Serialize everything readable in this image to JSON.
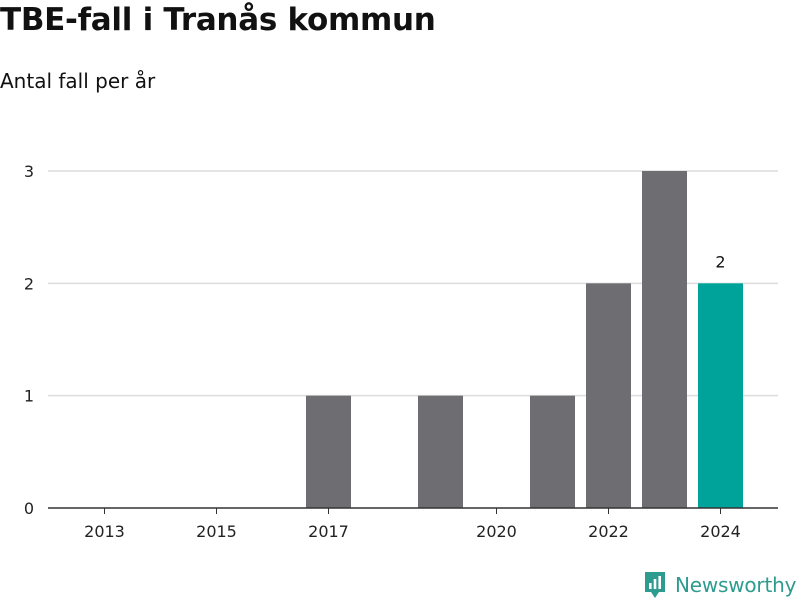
{
  "title": "TBE-fall i Tranås kommun",
  "subtitle": "Antal fall per år",
  "brand": "Newsworthy",
  "colors": {
    "bar": "#6e6e72",
    "highlight": "#00a39a",
    "grid": "#dcdcdc",
    "axis": "#333333"
  },
  "chart_data": {
    "type": "bar",
    "title": "TBE-fall i Tranås kommun",
    "subtitle": "Antal fall per år",
    "x": [
      2013,
      2014,
      2015,
      2016,
      2017,
      2018,
      2019,
      2020,
      2021,
      2022,
      2023,
      2024
    ],
    "values": [
      0,
      0,
      0,
      0,
      1,
      0,
      1,
      0,
      1,
      2,
      3,
      2
    ],
    "x_ticks": [
      "2013",
      "2015",
      "2017",
      "2020",
      "2022",
      "2024"
    ],
    "y_ticks": [
      0,
      1,
      2,
      3
    ],
    "ylim": [
      0,
      3
    ],
    "grid": true,
    "highlight": {
      "x": 2024,
      "label": "2"
    },
    "xlabel": "",
    "ylabel": ""
  }
}
